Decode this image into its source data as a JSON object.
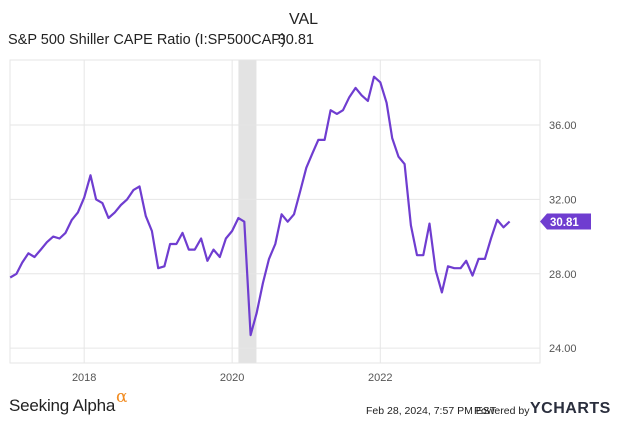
{
  "legend": {
    "column_header": "VAL",
    "series_name": "S&P 500 Shiller CAPE Ratio (I:SP500CAP)",
    "series_value": "30.81"
  },
  "footer": {
    "date": "Feb 28, 2024, 7:57 PM EST",
    "powered_by": "Powered by",
    "ycharts_logo": "YCHARTS",
    "brand": "Seeking Alpha",
    "brand_mark": "α"
  },
  "colors": {
    "line": "#6f3dd0",
    "recession_band": "#e3e3e3",
    "grid": "#e6e6e6",
    "axis_text": "#555555"
  },
  "chart_data": {
    "type": "line",
    "x_axis": "date",
    "xlim": [
      "2016-12-31",
      "2024-02-28"
    ],
    "ylim": [
      23.2,
      39.5
    ],
    "x_ticks": [
      {
        "date": "2018-01-01",
        "label": "2018"
      },
      {
        "date": "2020-01-01",
        "label": "2020"
      },
      {
        "date": "2022-01-01",
        "label": "2022"
      }
    ],
    "y_ticks": [
      {
        "value": 24,
        "label": "24.00"
      },
      {
        "value": 28,
        "label": "28.00"
      },
      {
        "value": 32,
        "label": "32.00"
      },
      {
        "value": 36,
        "label": "36.00"
      }
    ],
    "grid": true,
    "recession_shading": [
      [
        "2020-02-01",
        "2020-04-30"
      ]
    ],
    "last_value_label": "30.81",
    "series": [
      {
        "name": "S&P 500 Shiller CAPE Ratio (I:SP500CAP)",
        "points": [
          [
            "2017-01-01",
            27.8
          ],
          [
            "2017-02-01",
            28.0
          ],
          [
            "2017-03-01",
            28.6
          ],
          [
            "2017-04-01",
            29.1
          ],
          [
            "2017-05-01",
            28.9
          ],
          [
            "2017-06-01",
            29.3
          ],
          [
            "2017-07-01",
            29.7
          ],
          [
            "2017-08-01",
            30.0
          ],
          [
            "2017-09-01",
            29.9
          ],
          [
            "2017-10-01",
            30.2
          ],
          [
            "2017-11-01",
            30.9
          ],
          [
            "2017-12-01",
            31.3
          ],
          [
            "2018-01-01",
            32.1
          ],
          [
            "2018-02-01",
            33.3
          ],
          [
            "2018-03-01",
            32.0
          ],
          [
            "2018-04-01",
            31.8
          ],
          [
            "2018-05-01",
            31.0
          ],
          [
            "2018-06-01",
            31.3
          ],
          [
            "2018-07-01",
            31.7
          ],
          [
            "2018-08-01",
            32.0
          ],
          [
            "2018-09-01",
            32.5
          ],
          [
            "2018-10-01",
            32.7
          ],
          [
            "2018-11-01",
            31.1
          ],
          [
            "2018-12-01",
            30.3
          ],
          [
            "2019-01-01",
            28.3
          ],
          [
            "2019-02-01",
            28.4
          ],
          [
            "2019-03-01",
            29.6
          ],
          [
            "2019-04-01",
            29.6
          ],
          [
            "2019-05-01",
            30.2
          ],
          [
            "2019-06-01",
            29.3
          ],
          [
            "2019-07-01",
            29.3
          ],
          [
            "2019-08-01",
            29.9
          ],
          [
            "2019-09-01",
            28.7
          ],
          [
            "2019-10-01",
            29.3
          ],
          [
            "2019-11-01",
            28.9
          ],
          [
            "2019-12-01",
            29.9
          ],
          [
            "2020-01-01",
            30.3
          ],
          [
            "2020-02-01",
            31.0
          ],
          [
            "2020-03-01",
            30.8
          ],
          [
            "2020-04-01",
            24.7
          ],
          [
            "2020-05-01",
            25.9
          ],
          [
            "2020-06-01",
            27.5
          ],
          [
            "2020-07-01",
            28.8
          ],
          [
            "2020-08-01",
            29.6
          ],
          [
            "2020-09-01",
            31.2
          ],
          [
            "2020-10-01",
            30.8
          ],
          [
            "2020-11-01",
            31.2
          ],
          [
            "2020-12-01",
            32.4
          ],
          [
            "2021-01-01",
            33.7
          ],
          [
            "2021-02-01",
            34.5
          ],
          [
            "2021-03-01",
            35.2
          ],
          [
            "2021-04-01",
            35.2
          ],
          [
            "2021-05-01",
            36.8
          ],
          [
            "2021-06-01",
            36.6
          ],
          [
            "2021-07-01",
            36.8
          ],
          [
            "2021-08-01",
            37.5
          ],
          [
            "2021-09-01",
            38.0
          ],
          [
            "2021-10-01",
            37.6
          ],
          [
            "2021-11-01",
            37.3
          ],
          [
            "2021-12-01",
            38.6
          ],
          [
            "2022-01-01",
            38.3
          ],
          [
            "2022-02-01",
            37.2
          ],
          [
            "2022-03-01",
            35.3
          ],
          [
            "2022-04-01",
            34.3
          ],
          [
            "2022-05-01",
            33.9
          ],
          [
            "2022-06-01",
            30.6
          ],
          [
            "2022-07-01",
            29.0
          ],
          [
            "2022-08-01",
            29.0
          ],
          [
            "2022-09-01",
            30.7
          ],
          [
            "2022-10-01",
            28.2
          ],
          [
            "2022-11-01",
            27.0
          ],
          [
            "2022-12-01",
            28.4
          ],
          [
            "2023-01-01",
            28.3
          ],
          [
            "2023-02-01",
            28.3
          ],
          [
            "2023-03-01",
            28.7
          ],
          [
            "2023-04-01",
            27.9
          ],
          [
            "2023-05-01",
            28.8
          ],
          [
            "2023-06-01",
            28.8
          ],
          [
            "2023-07-01",
            29.9
          ],
          [
            "2023-08-01",
            30.9
          ],
          [
            "2023-09-01",
            30.5
          ],
          [
            "2023-10-01",
            30.81
          ]
        ]
      }
    ]
  }
}
